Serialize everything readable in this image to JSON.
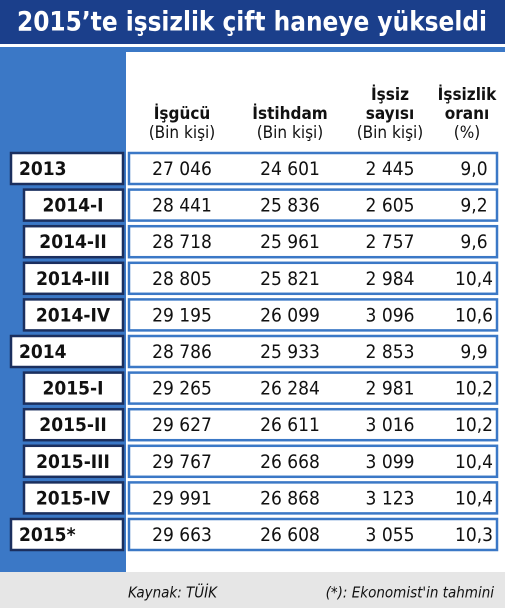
{
  "header": {
    "title": "2015’te işsizlik çift haneye yükseldi"
  },
  "table": {
    "columns": [
      [
        "İşgücü",
        "(Bin kişi)"
      ],
      [
        "İstihdam",
        "(Bin kişi)"
      ],
      [
        "İşsiz",
        "sayısı",
        "(Bin kişi)"
      ],
      [
        "İşsizlik",
        "oranı",
        "(%)"
      ]
    ],
    "rows": [
      [
        "2013",
        "27 046",
        "24 601",
        "2 445",
        "9,0"
      ],
      [
        "2014-I",
        "28 441",
        "25 836",
        "2 605",
        "9,2"
      ],
      [
        "2014-II",
        "28 718",
        "25 961",
        "2 757",
        "9,6"
      ],
      [
        "2014-III",
        "28 805",
        "25 821",
        "2 984",
        "10,4"
      ],
      [
        "2014-IV",
        "29 195",
        "26 099",
        "3 096",
        "10,6"
      ],
      [
        "2014",
        "28 786",
        "25 933",
        "2 853",
        "9,9"
      ],
      [
        "2015-I",
        "29 265",
        "26 284",
        "2 981",
        "10,2"
      ],
      [
        "2015-II",
        "29 627",
        "26 611",
        "3 016",
        "10,2"
      ],
      [
        "2015-III",
        "29 767",
        "26 668",
        "3 099",
        "10,4"
      ],
      [
        "2015-IV",
        "29 991",
        "26 868",
        "3 123",
        "10,4"
      ],
      [
        "2015*",
        "29 663",
        "26 608",
        "3 055",
        "10,3"
      ]
    ]
  },
  "footer": {
    "source": "Kaynak: TÜİK",
    "note": "(*): Ekonomist'in tahmini"
  }
}
